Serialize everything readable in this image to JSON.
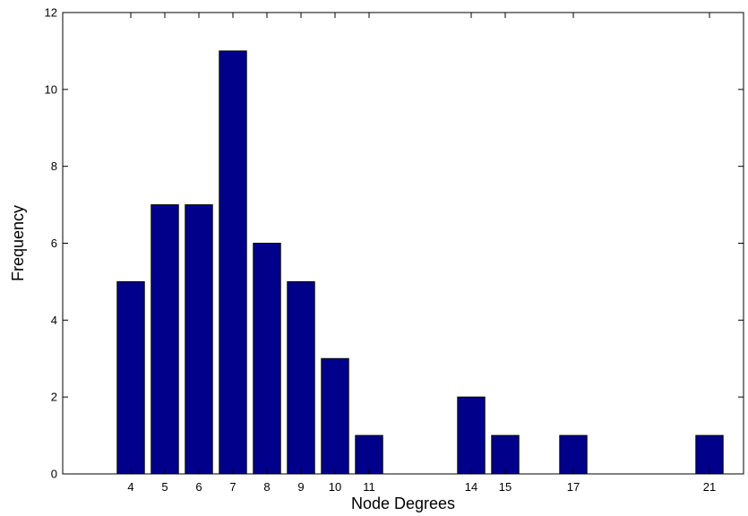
{
  "chart_data": {
    "type": "bar",
    "title": "",
    "xlabel": "Node Degrees",
    "ylabel": "Frequency",
    "x_ticks": [
      4,
      5,
      6,
      7,
      8,
      9,
      10,
      11,
      14,
      15,
      17,
      21
    ],
    "y_ticks": [
      0,
      2,
      4,
      6,
      8,
      10,
      12
    ],
    "xlim": [
      2,
      22
    ],
    "ylim": [
      0,
      12
    ],
    "grid": false,
    "bar_color": "#00008b",
    "categories": [
      4,
      5,
      6,
      7,
      8,
      9,
      10,
      11,
      14,
      15,
      17,
      21
    ],
    "values": [
      5,
      7,
      7,
      11,
      6,
      5,
      3,
      1,
      2,
      1,
      1,
      1
    ]
  }
}
